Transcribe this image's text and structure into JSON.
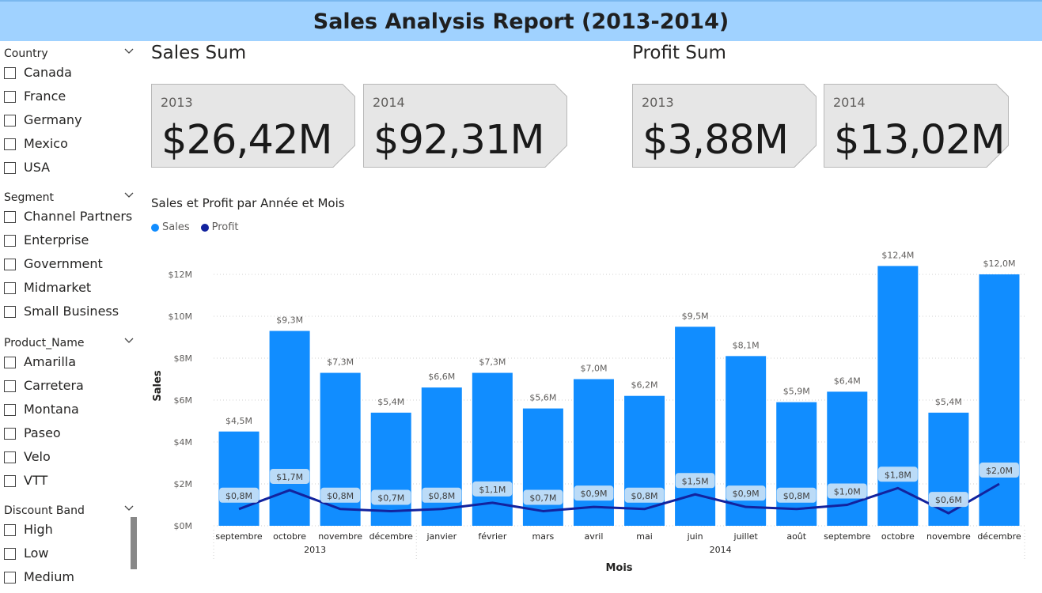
{
  "title": "Sales Analysis Report (2013-2014)",
  "slicers": [
    {
      "label": "Country",
      "options": [
        "Canada",
        "France",
        "Germany",
        "Mexico",
        "USA"
      ]
    },
    {
      "label": "Segment",
      "options": [
        "Channel Partners",
        "Enterprise",
        "Government",
        "Midmarket",
        "Small Business"
      ]
    },
    {
      "label": "Product_Name",
      "options": [
        "Amarilla",
        "Carretera",
        "Montana",
        "Paseo",
        "Velo",
        "VTT"
      ]
    },
    {
      "label": "Discount Band",
      "options": [
        "High",
        "Low",
        "Medium"
      ]
    }
  ],
  "sales_sum": {
    "title": "Sales Sum",
    "cards": [
      {
        "year": "2013",
        "value": "$26,42M"
      },
      {
        "year": "2014",
        "value": "$92,31M"
      }
    ]
  },
  "profit_sum": {
    "title": "Profit Sum",
    "cards": [
      {
        "year": "2013",
        "value": "$3,88M"
      },
      {
        "year": "2014",
        "value": "$13,02M"
      }
    ]
  },
  "colors": {
    "header_bg": "#a0d2ff",
    "sales": "#118dff",
    "profit": "#12239e",
    "card_bg": "#e6e6e6"
  },
  "chart_data": {
    "type": "bar",
    "title": "Sales et Profit par Année et Mois",
    "xlabel": "Mois",
    "ylabel": "Sales",
    "ylim": [
      0,
      12.4
    ],
    "yticks": [
      "$0M",
      "$2M",
      "$4M",
      "$6M",
      "$8M",
      "$10M",
      "$12M"
    ],
    "yticks_values": [
      0,
      2,
      4,
      6,
      8,
      10,
      12
    ],
    "grid": true,
    "legend_position": "top-left",
    "categories": [
      "septembre",
      "octobre",
      "novembre",
      "décembre",
      "janvier",
      "février",
      "mars",
      "avril",
      "mai",
      "juin",
      "juillet",
      "août",
      "septembre",
      "octobre",
      "novembre",
      "décembre"
    ],
    "groups": [
      {
        "label": "2013",
        "count": 4
      },
      {
        "label": "2014",
        "count": 12
      }
    ],
    "series": [
      {
        "name": "Sales",
        "type": "bar",
        "values": [
          4.5,
          9.3,
          7.3,
          5.4,
          6.6,
          7.3,
          5.6,
          7.0,
          6.2,
          9.5,
          8.1,
          5.9,
          6.4,
          12.4,
          5.4,
          12.0
        ],
        "labels": [
          "$4,5M",
          "$9,3M",
          "$7,3M",
          "$5,4M",
          "$6,6M",
          "$7,3M",
          "$5,6M",
          "$7,0M",
          "$6,2M",
          "$9,5M",
          "$8,1M",
          "$5,9M",
          "$6,4M",
          "$12,4M",
          "$5,4M",
          "$12,0M"
        ]
      },
      {
        "name": "Profit",
        "type": "line",
        "values": [
          0.8,
          1.7,
          0.8,
          0.7,
          0.8,
          1.1,
          0.7,
          0.9,
          0.8,
          1.5,
          0.9,
          0.8,
          1.0,
          1.8,
          0.6,
          2.0
        ],
        "labels": [
          "$0,8M",
          "$1,7M",
          "$0,8M",
          "$0,7M",
          "$0,8M",
          "$1,1M",
          "$0,7M",
          "$0,9M",
          "$0,8M",
          "$1,5M",
          "$0,9M",
          "$0,8M",
          "$1,0M",
          "$1,8M",
          "$0,6M",
          "$2,0M"
        ]
      }
    ]
  }
}
